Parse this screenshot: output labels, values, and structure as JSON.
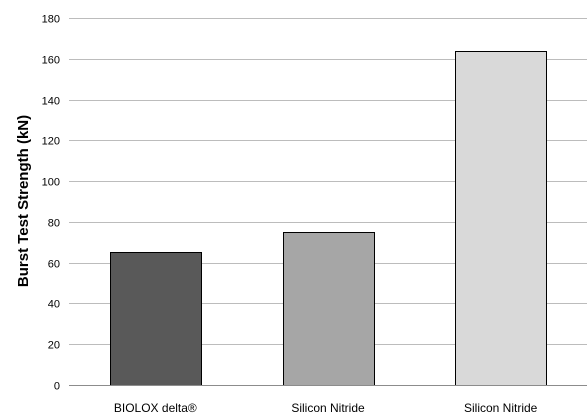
{
  "chart_data": {
    "type": "bar",
    "title": "",
    "xlabel": "",
    "ylabel": "Burst Test Strength (kN)",
    "ylim": [
      0,
      180
    ],
    "yticks": [
      0,
      20,
      40,
      60,
      80,
      100,
      120,
      140,
      160,
      180
    ],
    "grid": true,
    "legend": "none",
    "categories": [
      "BIOLOX delta®",
      "Silicon Nitride",
      "Silicon Nitride"
    ],
    "values": [
      65,
      75,
      164
    ],
    "colors": [
      "#595959",
      "#a6a6a6",
      "#d9d9d9"
    ]
  }
}
